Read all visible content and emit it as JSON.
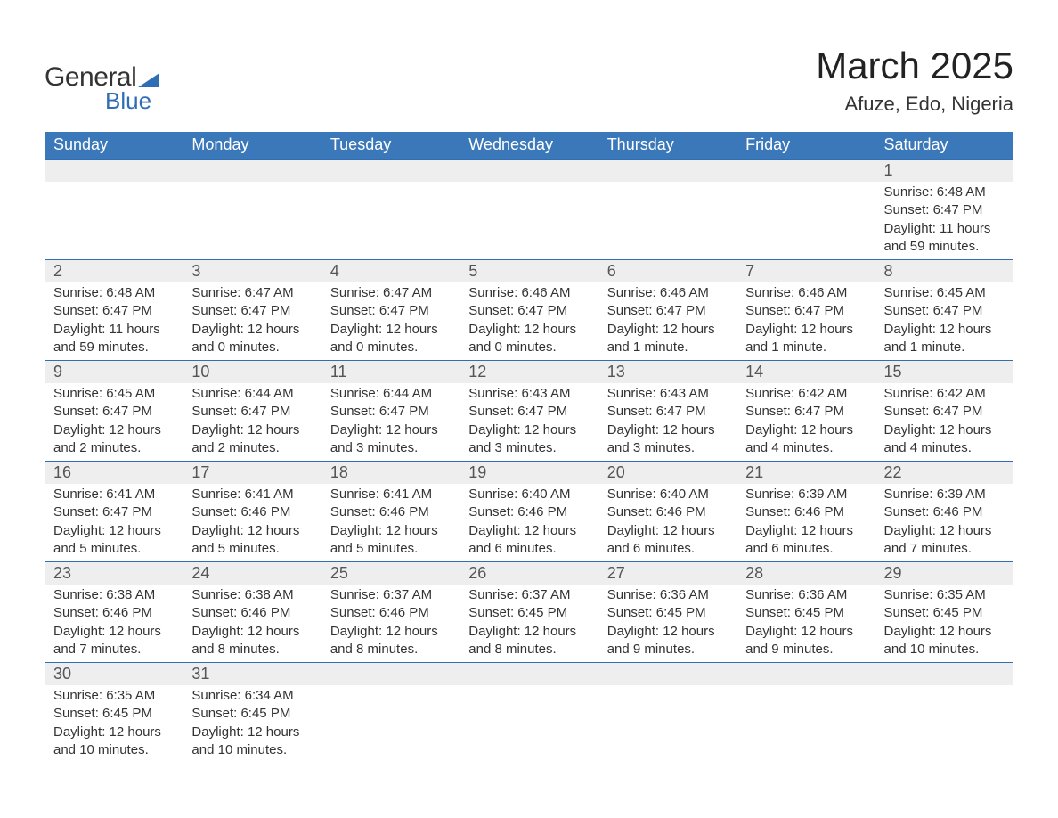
{
  "brand": {
    "word1": "General",
    "word2": "Blue"
  },
  "title": "March 2025",
  "location": "Afuze, Edo, Nigeria",
  "colors": {
    "header_bg": "#3a78b9",
    "header_text": "#ffffff",
    "row_divider": "#2f6eb4",
    "daynum_bg": "#eeeeee",
    "text": "#333333",
    "accent": "#2f6eb4"
  },
  "typography": {
    "title_fontsize": 42,
    "location_fontsize": 22,
    "header_fontsize": 18,
    "daynum_fontsize": 18,
    "body_fontsize": 15
  },
  "layout": {
    "columns": 7,
    "rows": 6,
    "start_weekday": "Sunday"
  },
  "weekdays": [
    "Sunday",
    "Monday",
    "Tuesday",
    "Wednesday",
    "Thursday",
    "Friday",
    "Saturday"
  ],
  "weeks": [
    [
      null,
      null,
      null,
      null,
      null,
      null,
      {
        "n": "1",
        "sunrise": "Sunrise: 6:48 AM",
        "sunset": "Sunset: 6:47 PM",
        "daylight": "Daylight: 11 hours and 59 minutes."
      }
    ],
    [
      {
        "n": "2",
        "sunrise": "Sunrise: 6:48 AM",
        "sunset": "Sunset: 6:47 PM",
        "daylight": "Daylight: 11 hours and 59 minutes."
      },
      {
        "n": "3",
        "sunrise": "Sunrise: 6:47 AM",
        "sunset": "Sunset: 6:47 PM",
        "daylight": "Daylight: 12 hours and 0 minutes."
      },
      {
        "n": "4",
        "sunrise": "Sunrise: 6:47 AM",
        "sunset": "Sunset: 6:47 PM",
        "daylight": "Daylight: 12 hours and 0 minutes."
      },
      {
        "n": "5",
        "sunrise": "Sunrise: 6:46 AM",
        "sunset": "Sunset: 6:47 PM",
        "daylight": "Daylight: 12 hours and 0 minutes."
      },
      {
        "n": "6",
        "sunrise": "Sunrise: 6:46 AM",
        "sunset": "Sunset: 6:47 PM",
        "daylight": "Daylight: 12 hours and 1 minute."
      },
      {
        "n": "7",
        "sunrise": "Sunrise: 6:46 AM",
        "sunset": "Sunset: 6:47 PM",
        "daylight": "Daylight: 12 hours and 1 minute."
      },
      {
        "n": "8",
        "sunrise": "Sunrise: 6:45 AM",
        "sunset": "Sunset: 6:47 PM",
        "daylight": "Daylight: 12 hours and 1 minute."
      }
    ],
    [
      {
        "n": "9",
        "sunrise": "Sunrise: 6:45 AM",
        "sunset": "Sunset: 6:47 PM",
        "daylight": "Daylight: 12 hours and 2 minutes."
      },
      {
        "n": "10",
        "sunrise": "Sunrise: 6:44 AM",
        "sunset": "Sunset: 6:47 PM",
        "daylight": "Daylight: 12 hours and 2 minutes."
      },
      {
        "n": "11",
        "sunrise": "Sunrise: 6:44 AM",
        "sunset": "Sunset: 6:47 PM",
        "daylight": "Daylight: 12 hours and 3 minutes."
      },
      {
        "n": "12",
        "sunrise": "Sunrise: 6:43 AM",
        "sunset": "Sunset: 6:47 PM",
        "daylight": "Daylight: 12 hours and 3 minutes."
      },
      {
        "n": "13",
        "sunrise": "Sunrise: 6:43 AM",
        "sunset": "Sunset: 6:47 PM",
        "daylight": "Daylight: 12 hours and 3 minutes."
      },
      {
        "n": "14",
        "sunrise": "Sunrise: 6:42 AM",
        "sunset": "Sunset: 6:47 PM",
        "daylight": "Daylight: 12 hours and 4 minutes."
      },
      {
        "n": "15",
        "sunrise": "Sunrise: 6:42 AM",
        "sunset": "Sunset: 6:47 PM",
        "daylight": "Daylight: 12 hours and 4 minutes."
      }
    ],
    [
      {
        "n": "16",
        "sunrise": "Sunrise: 6:41 AM",
        "sunset": "Sunset: 6:47 PM",
        "daylight": "Daylight: 12 hours and 5 minutes."
      },
      {
        "n": "17",
        "sunrise": "Sunrise: 6:41 AM",
        "sunset": "Sunset: 6:46 PM",
        "daylight": "Daylight: 12 hours and 5 minutes."
      },
      {
        "n": "18",
        "sunrise": "Sunrise: 6:41 AM",
        "sunset": "Sunset: 6:46 PM",
        "daylight": "Daylight: 12 hours and 5 minutes."
      },
      {
        "n": "19",
        "sunrise": "Sunrise: 6:40 AM",
        "sunset": "Sunset: 6:46 PM",
        "daylight": "Daylight: 12 hours and 6 minutes."
      },
      {
        "n": "20",
        "sunrise": "Sunrise: 6:40 AM",
        "sunset": "Sunset: 6:46 PM",
        "daylight": "Daylight: 12 hours and 6 minutes."
      },
      {
        "n": "21",
        "sunrise": "Sunrise: 6:39 AM",
        "sunset": "Sunset: 6:46 PM",
        "daylight": "Daylight: 12 hours and 6 minutes."
      },
      {
        "n": "22",
        "sunrise": "Sunrise: 6:39 AM",
        "sunset": "Sunset: 6:46 PM",
        "daylight": "Daylight: 12 hours and 7 minutes."
      }
    ],
    [
      {
        "n": "23",
        "sunrise": "Sunrise: 6:38 AM",
        "sunset": "Sunset: 6:46 PM",
        "daylight": "Daylight: 12 hours and 7 minutes."
      },
      {
        "n": "24",
        "sunrise": "Sunrise: 6:38 AM",
        "sunset": "Sunset: 6:46 PM",
        "daylight": "Daylight: 12 hours and 8 minutes."
      },
      {
        "n": "25",
        "sunrise": "Sunrise: 6:37 AM",
        "sunset": "Sunset: 6:46 PM",
        "daylight": "Daylight: 12 hours and 8 minutes."
      },
      {
        "n": "26",
        "sunrise": "Sunrise: 6:37 AM",
        "sunset": "Sunset: 6:45 PM",
        "daylight": "Daylight: 12 hours and 8 minutes."
      },
      {
        "n": "27",
        "sunrise": "Sunrise: 6:36 AM",
        "sunset": "Sunset: 6:45 PM",
        "daylight": "Daylight: 12 hours and 9 minutes."
      },
      {
        "n": "28",
        "sunrise": "Sunrise: 6:36 AM",
        "sunset": "Sunset: 6:45 PM",
        "daylight": "Daylight: 12 hours and 9 minutes."
      },
      {
        "n": "29",
        "sunrise": "Sunrise: 6:35 AM",
        "sunset": "Sunset: 6:45 PM",
        "daylight": "Daylight: 12 hours and 10 minutes."
      }
    ],
    [
      {
        "n": "30",
        "sunrise": "Sunrise: 6:35 AM",
        "sunset": "Sunset: 6:45 PM",
        "daylight": "Daylight: 12 hours and 10 minutes."
      },
      {
        "n": "31",
        "sunrise": "Sunrise: 6:34 AM",
        "sunset": "Sunset: 6:45 PM",
        "daylight": "Daylight: 12 hours and 10 minutes."
      },
      null,
      null,
      null,
      null,
      null
    ]
  ]
}
